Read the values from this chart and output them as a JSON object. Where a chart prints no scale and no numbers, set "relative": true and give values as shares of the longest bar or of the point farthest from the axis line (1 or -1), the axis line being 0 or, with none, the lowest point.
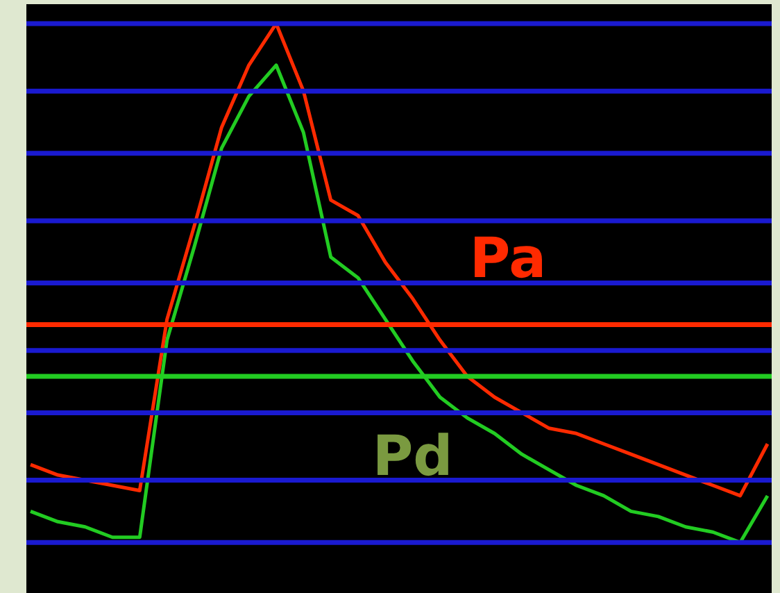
{
  "chart_data": {
    "type": "line",
    "relative": true,
    "legend": false,
    "marker": "none",
    "line_style": "solid",
    "categories": [
      null,
      null,
      null,
      null,
      null,
      null,
      null,
      null,
      null,
      null,
      null,
      null,
      null,
      null,
      null,
      null,
      null,
      null,
      null,
      null,
      null,
      null,
      null,
      null,
      null,
      null,
      null,
      null
    ],
    "series": [
      {
        "name": "Pa",
        "color": "#ff2a00",
        "values": [
          0.15,
          0.13,
          0.12,
          0.11,
          0.1,
          0.43,
          0.61,
          0.8,
          0.92,
          1,
          0.87,
          0.66,
          0.63,
          0.54,
          0.47,
          0.39,
          0.32,
          0.28,
          0.25,
          0.22,
          0.21,
          0.19,
          0.17,
          0.15,
          0.13,
          0.11,
          0.09,
          0.19
        ]
      },
      {
        "name": "Pd",
        "color": "#22cc22",
        "values": [
          0.06,
          0.04,
          0.03,
          0.01,
          0.01,
          0.39,
          0.57,
          0.76,
          0.86,
          0.92,
          0.79,
          0.55,
          0.51,
          0.43,
          0.35,
          0.28,
          0.24,
          0.21,
          0.17,
          0.14,
          0.11,
          0.09,
          0.06,
          0.05,
          0.03,
          0.02,
          0,
          0.09
        ]
      }
    ],
    "ref_lines": [
      {
        "axis": "y",
        "value": 1,
        "color": "#1a1ad0"
      },
      {
        "axis": "y",
        "value": 0.87,
        "color": "#1a1ad0"
      },
      {
        "axis": "y",
        "value": 0.75,
        "color": "#1a1ad0"
      },
      {
        "axis": "y",
        "value": 0.62,
        "color": "#1a1ad0"
      },
      {
        "axis": "y",
        "value": 0.5,
        "color": "#1a1ad0"
      },
      {
        "axis": "y",
        "value": 0.37,
        "color": "#1a1ad0"
      },
      {
        "axis": "y",
        "value": 0.25,
        "color": "#1a1ad0"
      },
      {
        "axis": "y",
        "value": 0.12,
        "color": "#1a1ad0"
      },
      {
        "axis": "y",
        "value": 0,
        "color": "#1a1ad0"
      },
      {
        "axis": "y",
        "value": 0.42,
        "color": "#ff2a00"
      },
      {
        "axis": "y",
        "value": 0.32,
        "color": "#22cc22"
      }
    ]
  }
}
